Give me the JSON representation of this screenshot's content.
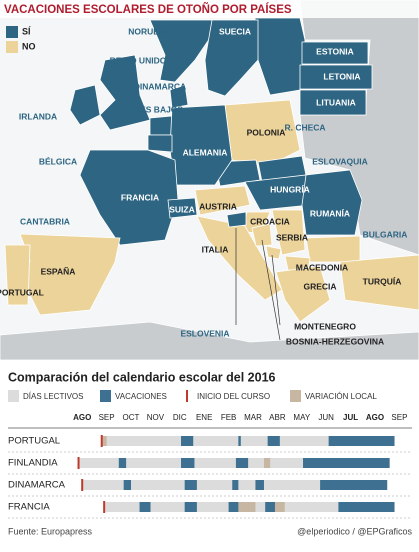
{
  "map": {
    "title": "VACACIONES ESCOLARES DE OTOÑO POR PAÍSES",
    "legend": [
      {
        "label": "SÍ",
        "color": "#2d6583"
      },
      {
        "label": "NO",
        "color": "#ecd39a"
      }
    ],
    "countries": [
      {
        "label": "NORUEGA",
        "vacaciones": true
      },
      {
        "label": "SUECIA",
        "vacaciones": true
      },
      {
        "label": "ESTONIA",
        "vacaciones": true
      },
      {
        "label": "REINO UNIDO",
        "vacaciones": true
      },
      {
        "label": "LETONIA",
        "vacaciones": true
      },
      {
        "label": "DINAMARCA",
        "vacaciones": true
      },
      {
        "label": "PAÍSES BAJOS",
        "vacaciones": true
      },
      {
        "label": "LITUANIA",
        "vacaciones": true
      },
      {
        "label": "IRLANDA",
        "vacaciones": true
      },
      {
        "label": "POLONIA",
        "vacaciones": false
      },
      {
        "label": "R. CHECA",
        "vacaciones": true
      },
      {
        "label": "ALEMANIA",
        "vacaciones": true
      },
      {
        "label": "BÉLGICA",
        "vacaciones": true
      },
      {
        "label": "ESLOVAQUIA",
        "vacaciones": true
      },
      {
        "label": "HUNGRÍA",
        "vacaciones": true
      },
      {
        "label": "FRANCIA",
        "vacaciones": true
      },
      {
        "label": "SUIZA",
        "vacaciones": true
      },
      {
        "label": "AUSTRIA",
        "vacaciones": false
      },
      {
        "label": "RUMANÍA",
        "vacaciones": true
      },
      {
        "label": "CANTABRIA",
        "vacaciones": true
      },
      {
        "label": "CROACIA",
        "vacaciones": false
      },
      {
        "label": "SERBIA",
        "vacaciones": false
      },
      {
        "label": "BULGARIA",
        "vacaciones": false
      },
      {
        "label": "ITALIA",
        "vacaciones": false
      },
      {
        "label": "ESPAÑA",
        "vacaciones": false
      },
      {
        "label": "MACEDONIA",
        "vacaciones": false
      },
      {
        "label": "TURQUÍA",
        "vacaciones": false
      },
      {
        "label": "PORTUGAL",
        "vacaciones": false
      },
      {
        "label": "GRECIA",
        "vacaciones": false
      },
      {
        "label": "MONTENEGRO",
        "vacaciones": false
      },
      {
        "label": "BOSNIA-HERZEGOVINA",
        "vacaciones": false
      },
      {
        "label": "ESLOVENIA",
        "vacaciones": true
      }
    ]
  },
  "calendar": {
    "title": "Comparación del calendario escolar del 2016",
    "legend": [
      {
        "label": "DÍAS LECTIVOS",
        "color": "#dcdcdc"
      },
      {
        "label": "VACACIONES",
        "color": "#3e7191"
      },
      {
        "label": "INICIO DEL CURSO",
        "color": "#c0392b"
      },
      {
        "label": "VARIACIÓN LOCAL",
        "color": "#c6b6a2"
      }
    ],
    "months": [
      "AGO",
      "SEP",
      "OCT",
      "NOV",
      "DIC",
      "ENE",
      "FEB",
      "MAR",
      "ABR",
      "MAY",
      "JUN",
      "JUL",
      "AGO",
      "SEP"
    ],
    "rows": [
      {
        "label": "PORTUGAL",
        "inicio": 1.3,
        "end": 13.3,
        "vacaciones": [
          [
            4.55,
            5.05
          ],
          [
            6.9,
            7.0
          ],
          [
            8.1,
            8.6
          ],
          [
            10.6,
            13.3
          ]
        ],
        "variacion": [
          [
            1.3,
            1.5
          ]
        ]
      },
      {
        "label": "FINLANDIA",
        "inicio": 0.35,
        "end": 13.1,
        "vacaciones": [
          [
            2.0,
            2.3
          ],
          [
            4.55,
            5.1
          ],
          [
            6.8,
            7.3
          ],
          [
            9.55,
            13.1
          ]
        ],
        "variacion": [
          [
            7.95,
            8.2
          ]
        ]
      },
      {
        "label": "DINAMARCA",
        "inicio": 0.5,
        "end": 13.0,
        "vacaciones": [
          [
            2.2,
            2.5
          ],
          [
            4.7,
            5.2
          ],
          [
            6.65,
            6.9
          ],
          [
            7.6,
            7.95
          ],
          [
            10.25,
            13.0
          ]
        ],
        "variacion": []
      },
      {
        "label": "FRANCIA",
        "inicio": 1.4,
        "end": 13.3,
        "vacaciones": [
          [
            2.85,
            3.3
          ],
          [
            4.7,
            5.2
          ],
          [
            6.5,
            6.9
          ],
          [
            8.0,
            8.4
          ],
          [
            11.0,
            13.3
          ]
        ],
        "variacion": [
          [
            6.9,
            7.6
          ],
          [
            8.4,
            8.8
          ]
        ]
      }
    ]
  },
  "source": "Fuente: Europapress",
  "credit": "@elperiodico / @EPGraficos"
}
